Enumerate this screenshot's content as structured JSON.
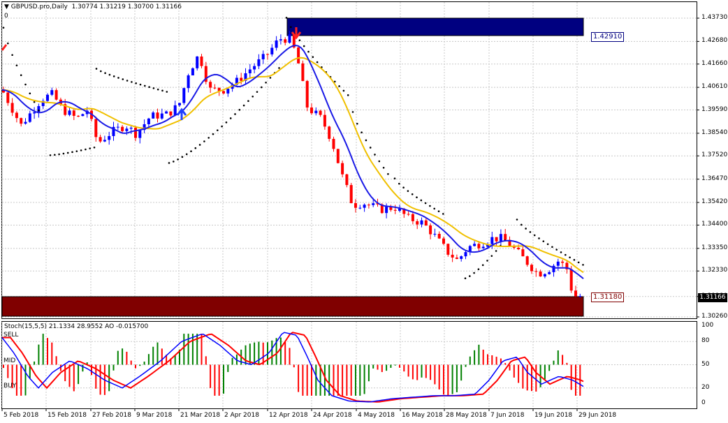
{
  "header": {
    "symbol": "GBPUSD.pro,Daily",
    "ohlc": "1.30774 1.31219 1.30700 1.31166",
    "window_zero": "0"
  },
  "price_axis": [
    "1.43730",
    "1.42680",
    "1.41660",
    "1.40610",
    "1.39590",
    "1.38540",
    "1.37520",
    "1.36470",
    "1.35420",
    "1.34400",
    "1.33350",
    "1.32330",
    "1.31180",
    "1.30260"
  ],
  "current_price": "1.31166",
  "resistance_box": {
    "label": "1.42910",
    "color": "#000080"
  },
  "support_box": {
    "label": "1.31180",
    "color": "#800000"
  },
  "stoch_panel": {
    "title": "Stoch(15,5,5) 21.1334 28.9552   AO -0.015700",
    "axis": [
      "100",
      "80",
      "50",
      "20",
      "0"
    ],
    "sell_label": "SELL",
    "mid_label": "MID",
    "buy_label": "BUY"
  },
  "date_axis": [
    "5 Feb 2018",
    "15 Feb 2018",
    "27 Feb 2018",
    "9 Mar 2018",
    "21 Mar 2018",
    "2 Apr 2018",
    "12 Apr 2018",
    "24 Apr 2018",
    "4 May 2018",
    "16 May 2018",
    "28 May 2018",
    "7 Jun 2018",
    "19 Jun 2018",
    "29 Jun 2018"
  ],
  "colors": {
    "bull": "#0000ff",
    "bear": "#ff0000",
    "ma_fast": "#1a1ae6",
    "ma_slow": "#f0c000",
    "ao_up": "#008000",
    "ao_down": "#ff0000",
    "stoch_main": "#0000ff",
    "stoch_signal": "#ff0000"
  }
}
